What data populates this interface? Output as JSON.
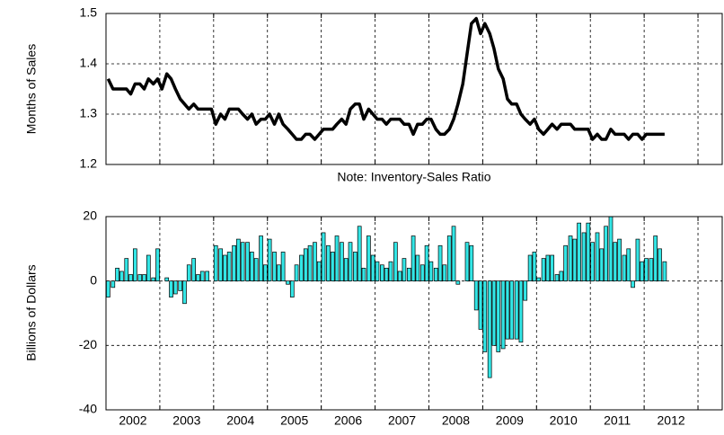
{
  "chart_data": [
    {
      "type": "line",
      "ylabel": "Months of Sales",
      "note": "Note: Inventory-Sales Ratio",
      "color": "#000000",
      "grid": true,
      "xlim": [
        2002,
        2013.45
      ],
      "xticks": [
        2002,
        2003,
        2004,
        2005,
        2006,
        2007,
        2008,
        2009,
        2010,
        2011,
        2012
      ],
      "ylim": [
        1.2,
        1.5
      ],
      "yticks": [
        1.2,
        1.3,
        1.4,
        1.5
      ],
      "x": [
        2002.04,
        2002.13,
        2002.21,
        2002.29,
        2002.38,
        2002.46,
        2002.54,
        2002.63,
        2002.71,
        2002.79,
        2002.88,
        2002.96,
        2003.04,
        2003.13,
        2003.21,
        2003.29,
        2003.38,
        2003.46,
        2003.54,
        2003.63,
        2003.71,
        2003.79,
        2003.88,
        2003.96,
        2004.04,
        2004.13,
        2004.21,
        2004.29,
        2004.38,
        2004.46,
        2004.54,
        2004.63,
        2004.71,
        2004.79,
        2004.88,
        2004.96,
        2005.04,
        2005.13,
        2005.21,
        2005.29,
        2005.38,
        2005.46,
        2005.54,
        2005.63,
        2005.71,
        2005.79,
        2005.88,
        2005.96,
        2006.04,
        2006.13,
        2006.21,
        2006.29,
        2006.38,
        2006.46,
        2006.54,
        2006.63,
        2006.71,
        2006.79,
        2006.88,
        2006.96,
        2007.04,
        2007.13,
        2007.21,
        2007.29,
        2007.38,
        2007.46,
        2007.54,
        2007.63,
        2007.71,
        2007.79,
        2007.88,
        2007.96,
        2008.04,
        2008.13,
        2008.21,
        2008.29,
        2008.38,
        2008.46,
        2008.54,
        2008.63,
        2008.71,
        2008.79,
        2008.88,
        2008.96,
        2009.04,
        2009.13,
        2009.21,
        2009.29,
        2009.38,
        2009.46,
        2009.54,
        2009.63,
        2009.71,
        2009.79,
        2009.88,
        2009.96,
        2010.04,
        2010.13,
        2010.21,
        2010.29,
        2010.38,
        2010.46,
        2010.54,
        2010.63,
        2010.71,
        2010.79,
        2010.88,
        2010.96,
        2011.04,
        2011.13,
        2011.21,
        2011.29,
        2011.38,
        2011.46,
        2011.54,
        2011.63,
        2011.71,
        2011.79,
        2011.88,
        2011.96,
        2012.04,
        2012.13,
        2012.21,
        2012.29,
        2012.38
      ],
      "values": [
        1.37,
        1.35,
        1.35,
        1.35,
        1.35,
        1.34,
        1.36,
        1.36,
        1.35,
        1.37,
        1.36,
        1.37,
        1.35,
        1.38,
        1.37,
        1.35,
        1.33,
        1.32,
        1.31,
        1.32,
        1.31,
        1.31,
        1.31,
        1.31,
        1.28,
        1.3,
        1.29,
        1.31,
        1.31,
        1.31,
        1.3,
        1.29,
        1.3,
        1.28,
        1.29,
        1.29,
        1.3,
        1.28,
        1.3,
        1.28,
        1.27,
        1.26,
        1.25,
        1.25,
        1.26,
        1.26,
        1.25,
        1.26,
        1.27,
        1.27,
        1.27,
        1.28,
        1.29,
        1.28,
        1.31,
        1.32,
        1.32,
        1.29,
        1.31,
        1.3,
        1.29,
        1.29,
        1.28,
        1.29,
        1.29,
        1.29,
        1.28,
        1.28,
        1.26,
        1.28,
        1.28,
        1.29,
        1.29,
        1.27,
        1.26,
        1.26,
        1.27,
        1.29,
        1.32,
        1.36,
        1.42,
        1.48,
        1.49,
        1.46,
        1.48,
        1.46,
        1.43,
        1.39,
        1.37,
        1.33,
        1.32,
        1.32,
        1.3,
        1.29,
        1.28,
        1.29,
        1.27,
        1.26,
        1.27,
        1.28,
        1.27,
        1.28,
        1.28,
        1.28,
        1.27,
        1.27,
        1.27,
        1.27,
        1.25,
        1.26,
        1.25,
        1.25,
        1.27,
        1.26,
        1.26,
        1.26,
        1.25,
        1.26,
        1.26,
        1.25,
        1.26,
        1.26,
        1.26,
        1.26,
        1.26
      ]
    },
    {
      "type": "bar",
      "ylabel": "Billions of Dollars",
      "color": "#33e6e6",
      "grid": true,
      "xlim": [
        2002,
        2013.45
      ],
      "xticks": [
        2002,
        2003,
        2004,
        2005,
        2006,
        2007,
        2008,
        2009,
        2010,
        2011,
        2012
      ],
      "ylim": [
        -40,
        20
      ],
      "yticks": [
        -40,
        -20,
        0,
        20
      ],
      "x": [
        2002.04,
        2002.13,
        2002.21,
        2002.29,
        2002.38,
        2002.46,
        2002.54,
        2002.63,
        2002.71,
        2002.79,
        2002.88,
        2002.96,
        2003.04,
        2003.13,
        2003.21,
        2003.29,
        2003.38,
        2003.46,
        2003.54,
        2003.63,
        2003.71,
        2003.79,
        2003.88,
        2003.96,
        2004.04,
        2004.13,
        2004.21,
        2004.29,
        2004.38,
        2004.46,
        2004.54,
        2004.63,
        2004.71,
        2004.79,
        2004.88,
        2004.96,
        2005.04,
        2005.13,
        2005.21,
        2005.29,
        2005.38,
        2005.46,
        2005.54,
        2005.63,
        2005.71,
        2005.79,
        2005.88,
        2005.96,
        2006.04,
        2006.13,
        2006.21,
        2006.29,
        2006.38,
        2006.46,
        2006.54,
        2006.63,
        2006.71,
        2006.79,
        2006.88,
        2006.96,
        2007.04,
        2007.13,
        2007.21,
        2007.29,
        2007.38,
        2007.46,
        2007.54,
        2007.63,
        2007.71,
        2007.79,
        2007.88,
        2007.96,
        2008.04,
        2008.13,
        2008.21,
        2008.29,
        2008.38,
        2008.46,
        2008.54,
        2008.63,
        2008.71,
        2008.79,
        2008.88,
        2008.96,
        2009.04,
        2009.13,
        2009.21,
        2009.29,
        2009.38,
        2009.46,
        2009.54,
        2009.63,
        2009.71,
        2009.79,
        2009.88,
        2009.96,
        2010.04,
        2010.13,
        2010.21,
        2010.29,
        2010.38,
        2010.46,
        2010.54,
        2010.63,
        2010.71,
        2010.79,
        2010.88,
        2010.96,
        2011.04,
        2011.13,
        2011.21,
        2011.29,
        2011.38,
        2011.46,
        2011.54,
        2011.63,
        2011.71,
        2011.79,
        2011.88,
        2011.96,
        2012.04,
        2012.13,
        2012.21,
        2012.29,
        2012.38
      ],
      "values": [
        -5,
        -2,
        4,
        3,
        7,
        2,
        10,
        2,
        2,
        8,
        1,
        10,
        0,
        1,
        -5,
        -4,
        -3,
        -7,
        5,
        7,
        2,
        3,
        3,
        0,
        11,
        10,
        8,
        9,
        11,
        13,
        12,
        12,
        9,
        7,
        14,
        5,
        13,
        9,
        5,
        9,
        -1,
        -5,
        5,
        8,
        10,
        11,
        12,
        6,
        15,
        11,
        9,
        14,
        12,
        7,
        12,
        9,
        17,
        4,
        14,
        8,
        6,
        5,
        4,
        6,
        12,
        3,
        7,
        4,
        14,
        8,
        5,
        11,
        6,
        4,
        11,
        5,
        14,
        17,
        -1,
        0,
        12,
        11,
        -9,
        -15,
        -22,
        -30,
        -20,
        -22,
        -21,
        -18,
        -18,
        -18,
        -19,
        -6,
        8,
        9,
        1,
        7,
        8,
        8,
        2,
        3,
        11,
        14,
        13,
        18,
        15,
        18,
        12,
        15,
        10,
        17,
        20,
        12,
        13,
        8,
        10,
        -2,
        13,
        6,
        7,
        7,
        14,
        10,
        6
      ]
    }
  ]
}
